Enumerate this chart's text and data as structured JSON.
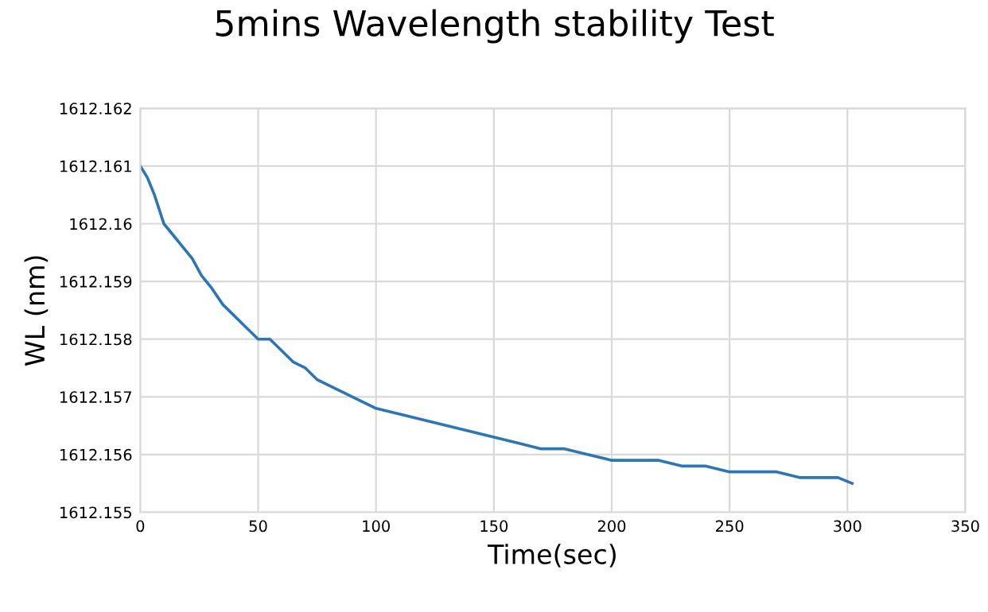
{
  "chart_data": {
    "type": "line",
    "title": "5mins Wavelength stability Test",
    "xlabel": "Time(sec)",
    "ylabel": "WL (nm)",
    "x": [
      0,
      3,
      6,
      10,
      14,
      18,
      22,
      26,
      30,
      35,
      40,
      45,
      50,
      55,
      60,
      65,
      70,
      75,
      80,
      85,
      90,
      95,
      100,
      110,
      120,
      130,
      140,
      150,
      160,
      170,
      180,
      190,
      200,
      210,
      220,
      230,
      240,
      250,
      260,
      270,
      280,
      290,
      296,
      302
    ],
    "series": [
      {
        "color": "#2e75b6",
        "values": [
          1612.161,
          1612.1608,
          1612.1605,
          1612.16,
          1612.1598,
          1612.1596,
          1612.1594,
          1612.1591,
          1612.1589,
          1612.1586,
          1612.1584,
          1612.1582,
          1612.158,
          1612.158,
          1612.1578,
          1612.1576,
          1612.1575,
          1612.1573,
          1612.1572,
          1612.1571,
          1612.157,
          1612.1569,
          1612.1568,
          1612.1567,
          1612.1566,
          1612.1565,
          1612.1564,
          1612.1563,
          1612.1562,
          1612.1561,
          1612.1561,
          1612.156,
          1612.1559,
          1612.1559,
          1612.1559,
          1612.1558,
          1612.1558,
          1612.1557,
          1612.1557,
          1612.1557,
          1612.1556,
          1612.1556,
          1612.1556,
          1612.1555
        ]
      }
    ],
    "xlim": [
      0,
      350
    ],
    "xticks": [
      0,
      50,
      100,
      150,
      200,
      250,
      300,
      350
    ],
    "ylim": [
      1612.155,
      1612.162
    ],
    "yticks": [
      1612.155,
      1612.156,
      1612.157,
      1612.158,
      1612.159,
      1612.16,
      1612.161,
      1612.162
    ],
    "grid": true,
    "legend": false,
    "marker": "none",
    "line_style": "solid"
  }
}
